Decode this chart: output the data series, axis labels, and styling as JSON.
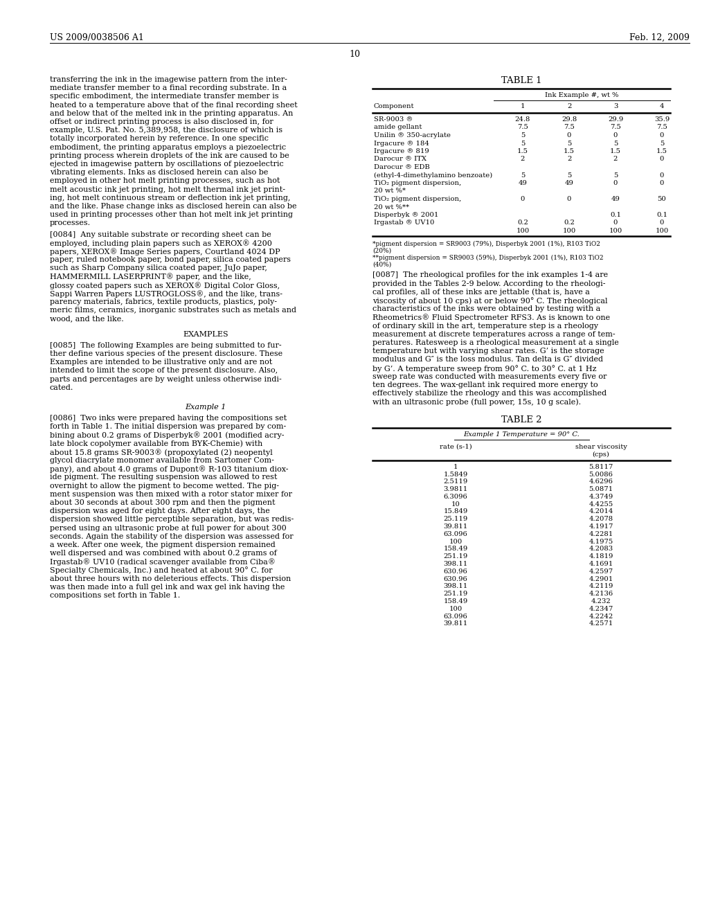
{
  "header_left": "US 2009/0038506 A1",
  "header_right": "Feb. 12, 2009",
  "page_number": "10",
  "background_color": "#ffffff",
  "para0_lines": [
    "transferring the ink in the imagewise pattern from the inter-",
    "mediate transfer member to a final recording substrate. In a",
    "specific embodiment, the intermediate transfer member is",
    "heated to a temperature above that of the final recording sheet",
    "and below that of the melted ink in the printing apparatus. An",
    "offset or indirect printing process is also disclosed in, for",
    "example, U.S. Pat. No. 5,389,958, the disclosure of which is",
    "totally incorporated herein by reference. In one specific",
    "embodiment, the printing apparatus employs a piezoelectric",
    "printing process wherein droplets of the ink are caused to be",
    "ejected in imagewise pattern by oscillations of piezoelectric",
    "vibrating elements. Inks as disclosed herein can also be",
    "employed in other hot melt printing processes, such as hot",
    "melt acoustic ink jet printing, hot melt thermal ink jet print-",
    "ing, hot melt continuous stream or deflection ink jet printing,",
    "and the like. Phase change inks as disclosed herein can also be",
    "used in printing processes other than hot melt ink jet printing",
    "processes."
  ],
  "para0084_lines": [
    "[0084]  Any suitable substrate or recording sheet can be",
    "employed, including plain papers such as XEROX® 4200",
    "papers, XEROX® Image Series papers, Courtland 4024 DP",
    "paper, ruled notebook paper, bond paper, silica coated papers",
    "such as Sharp Company silica coated paper, JuJo paper,",
    "HAMMERMILL LASERPRINT® paper, and the like,",
    "glossy coated papers such as XEROX® Digital Color Gloss,",
    "Sappi Warren Papers LUSTROGLOSS®, and the like, trans-",
    "parency materials, fabrics, textile products, plastics, poly-",
    "meric films, ceramics, inorganic substrates such as metals and",
    "wood, and the like."
  ],
  "examples_header": "EXAMPLES",
  "para0085_lines": [
    "[0085]  The following Examples are being submitted to fur-",
    "ther define various species of the present disclosure. These",
    "Examples are intended to be illustrative only and are not",
    "intended to limit the scope of the present disclosure. Also,",
    "parts and percentages are by weight unless otherwise indi-",
    "cated."
  ],
  "example1_header": "Example 1",
  "para0086_lines": [
    "[0086]  Two inks were prepared having the compositions set",
    "forth in Table 1. The initial dispersion was prepared by com-",
    "bining about 0.2 grams of Disperbyk® 2001 (modified acry-",
    "late block copolymer available from BYK-Chemie) with",
    "about 15.8 grams SR-9003® (propoxylated (2) neopentyl",
    "glycol diacrylate monomer available from Sartomer Com-",
    "pany), and about 4.0 grams of Dupont® R-103 titanium diox-",
    "ide pigment. The resulting suspension was allowed to rest",
    "overnight to allow the pigment to become wetted. The pig-",
    "ment suspension was then mixed with a rotor stator mixer for",
    "about 30 seconds at about 300 rpm and then the pigment",
    "dispersion was aged for eight days. After eight days, the",
    "dispersion showed little perceptible separation, but was redis-",
    "persed using an ultrasonic probe at full power for about 300",
    "seconds. Again the stability of the dispersion was assessed for",
    "a week. After one week, the pigment dispersion remained",
    "well dispersed and was combined with about 0.2 grams of",
    "Irgastab® UV10 (radical scavenger available from Ciba®",
    "Specialty Chemicals, Inc.) and heated at about 90° C. for",
    "about three hours with no deleterious effects. This dispersion",
    "was then made into a full gel ink and wax gel ink having the",
    "compositions set forth in Table 1."
  ],
  "table1_title": "TABLE 1",
  "table1_col_header": "Ink Example #, wt %",
  "table1_rows": [
    [
      "SR-9003 ®",
      "24.8",
      "29.8",
      "29.9",
      "35.9"
    ],
    [
      "amide gellant",
      "7.5",
      "7.5",
      "7.5",
      "7.5"
    ],
    [
      "Unilin ® 350-acrylate",
      "5",
      "0",
      "0",
      "0"
    ],
    [
      "Irgacure ® 184",
      "5",
      "5",
      "5",
      "5"
    ],
    [
      "Irgacure ® 819",
      "1.5",
      "1.5",
      "1.5",
      "1.5"
    ],
    [
      "Darocur ® ITX",
      "2",
      "2",
      "2",
      "0"
    ],
    [
      "Darocur ® EDB",
      "",
      "",
      "",
      ""
    ],
    [
      "(ethyl-4-dimethylamino benzoate)",
      "5",
      "5",
      "5",
      "0"
    ],
    [
      "TiO₂ pigment dispersion,",
      "49",
      "49",
      "0",
      "0"
    ],
    [
      "20 wt %*",
      "",
      "",
      "",
      ""
    ],
    [
      "TiO₂ pigment dispersion,",
      "0",
      "0",
      "49",
      "50"
    ],
    [
      "20 wt %**",
      "",
      "",
      "",
      ""
    ],
    [
      "Disperbyk ® 2001",
      "",
      "",
      "0.1",
      "0.1"
    ],
    [
      "Irgastab ® UV10",
      "0.2",
      "0.2",
      "0",
      "0"
    ],
    [
      "",
      "100",
      "100",
      "100",
      "100"
    ]
  ],
  "table1_footnote1": "*pigment dispersion = SR9003 (79%), Disperbyk 2001 (1%), R103 TiO2",
  "table1_footnote1b": "(20%)",
  "table1_footnote2": "**pigment dispersion = SR9003 (59%), Disperbyk 2001 (1%), R103 TiO2",
  "table1_footnote2b": "(40%)",
  "para0087_lines": [
    "[0087]  The rheological profiles for the ink examples 1-4 are",
    "provided in the Tables 2-9 below. According to the rheologi-",
    "cal profiles, all of these inks are jettable (that is, have a",
    "viscosity of about 10 cps) at or below 90° C. The rheological",
    "characteristics of the inks were obtained by testing with a",
    "Rheometrics® Fluid Spectrometer RFS3. As is known to one",
    "of ordinary skill in the art, temperature step is a rheology",
    "measurement at discrete temperatures across a range of tem-",
    "peratures. Ratesweep is a rheological measurement at a single",
    "temperature but with varying shear rates. G’ is the storage",
    "modulus and G″ is the loss modulus. Tan delta is G″ divided",
    "by G’. A temperature sweep from 90° C. to 30° C. at 1 Hz",
    "sweep rate was conducted with measurements every five or",
    "ten degrees. The wax-gellant ink required more energy to",
    "effectively stabilize the rheology and this was accomplished",
    "with an ultrasonic probe (full power, 15s, 10 g scale)."
  ],
  "table2_title": "TABLE 2",
  "table2_col_header": "Example 1 Temperature = 90° C.",
  "table2_rows": [
    [
      "1",
      "5.8117"
    ],
    [
      "1.5849",
      "5.0086"
    ],
    [
      "2.5119",
      "4.6296"
    ],
    [
      "3.9811",
      "5.0871"
    ],
    [
      "6.3096",
      "4.3749"
    ],
    [
      "10",
      "4.4255"
    ],
    [
      "15.849",
      "4.2014"
    ],
    [
      "25.119",
      "4.2078"
    ],
    [
      "39.811",
      "4.1917"
    ],
    [
      "63.096",
      "4.2281"
    ],
    [
      "100",
      "4.1975"
    ],
    [
      "158.49",
      "4.2083"
    ],
    [
      "251.19",
      "4.1819"
    ],
    [
      "398.11",
      "4.1691"
    ],
    [
      "630.96",
      "4.2597"
    ],
    [
      "630.96",
      "4.2901"
    ],
    [
      "398.11",
      "4.2119"
    ],
    [
      "251.19",
      "4.2136"
    ],
    [
      "158.49",
      "4.232"
    ],
    [
      "100",
      "4.2347"
    ],
    [
      "63.096",
      "4.2242"
    ],
    [
      "39.811",
      "4.2571"
    ]
  ]
}
